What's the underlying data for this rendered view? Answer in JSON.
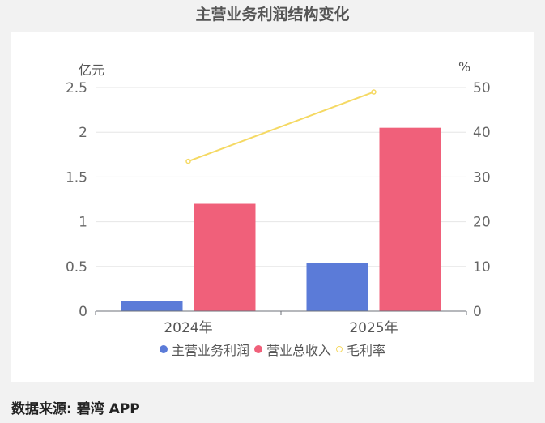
{
  "title": "主营业务利润结构变化",
  "source": "数据来源: 碧湾 APP",
  "units": {
    "left": "亿元",
    "right": "%"
  },
  "chart_data": {
    "type": "bar",
    "categories": [
      "2024年",
      "2025年"
    ],
    "series": [
      {
        "name": "主营业务利润",
        "type": "bar",
        "axis": "left",
        "color": "#5b7bd8",
        "values": [
          0.11,
          0.54
        ]
      },
      {
        "name": "营业总收入",
        "type": "bar",
        "axis": "left",
        "color": "#f0607a",
        "values": [
          1.2,
          2.05
        ]
      },
      {
        "name": "毛利率",
        "type": "line",
        "axis": "right",
        "color": "#f5d963",
        "values": [
          33.5,
          49
        ]
      }
    ],
    "y_left": {
      "ylim": [
        0,
        2.5
      ],
      "ticks": [
        "0",
        "0.5",
        "1",
        "1.5",
        "2",
        "2.5"
      ]
    },
    "y_right": {
      "ylim": [
        0,
        50
      ],
      "ticks": [
        "0",
        "10",
        "20",
        "30",
        "40",
        "50"
      ]
    },
    "grid": true,
    "legend": "bottom-center"
  }
}
